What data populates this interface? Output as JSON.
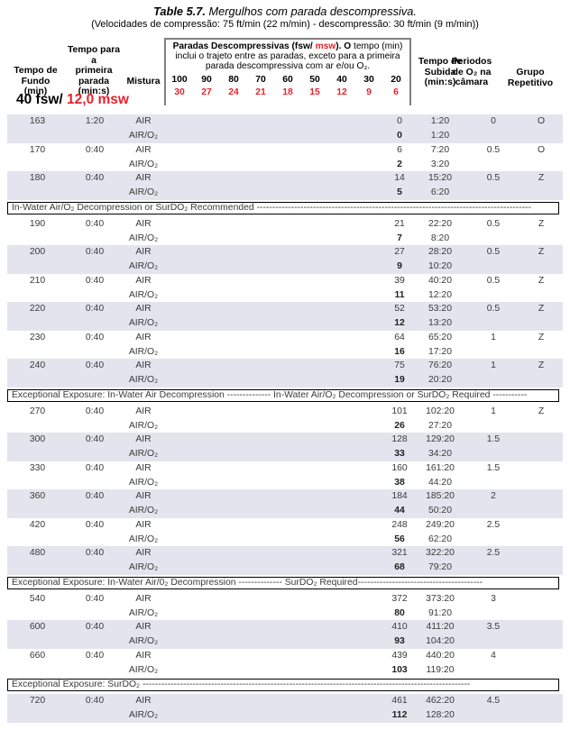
{
  "title": {
    "label": "Table 5.7.",
    "text": "Mergulhos com parada descompressiva."
  },
  "subtitle": "(Velocidades de compressão: 75 ft/min (22 m/min) - descompressão: 30 ft/min (9 m/min))",
  "depth_label": {
    "fsw": "40 fsw/",
    "msw": "12,0 msw"
  },
  "columns": {
    "bottom_time": "Tempo de Fundo\n(min)",
    "first_stop": "Tempo para a\nprimeira\nparada\n(min:s)",
    "mixture": "Mistura",
    "ascent": "Tempo de\nSubida\n(min:s)",
    "o2_periods": "Periodos\nde O₂ na\ncâmara",
    "repet_group": "Grupo\nRepetitivo"
  },
  "stops_header": {
    "title_bold_1": "Paradas Descompressivas (fsw/",
    "title_red": " msw",
    "title_bold_2": "). O",
    "title_rest": " tempo (min) inclui o trajeto entre as paradas, exceto para a primeira parada descompressiva com ar e/ou O₂.",
    "depths_fsw": [
      "100",
      "90",
      "80",
      "70",
      "60",
      "50",
      "40",
      "30",
      "20"
    ],
    "depths_msw": [
      "30",
      "27",
      "24",
      "21",
      "18",
      "15",
      "12",
      "9",
      "6"
    ]
  },
  "mixtures": {
    "air": "AIR",
    "air_o2": "AIR/O₂"
  },
  "colors": {
    "red": "#e8212b",
    "row_shade": "#e4e4ee",
    "box_border": "#808080"
  },
  "rows": [
    {
      "type": "group",
      "shaded": true,
      "bottom": "163",
      "first": "1:20",
      "air": {
        "stop": "0",
        "ascent": "1:20",
        "periods": "0",
        "group": "O"
      },
      "air_o2": {
        "stop": "0",
        "ascent": "1:20"
      }
    },
    {
      "type": "group",
      "shaded": false,
      "bottom": "170",
      "first": "0:40",
      "air": {
        "stop": "6",
        "ascent": "7:20",
        "periods": "0.5",
        "group": "O"
      },
      "air_o2": {
        "stop": "2",
        "ascent": "3:20"
      }
    },
    {
      "type": "group",
      "shaded": true,
      "bottom": "180",
      "first": "0:40",
      "air": {
        "stop": "14",
        "ascent": "15:20",
        "periods": "0.5",
        "group": "Z"
      },
      "air_o2": {
        "stop": "5",
        "ascent": "6:20"
      }
    },
    {
      "type": "banner",
      "text": "In-Water Air/O₂ Decompression or SurDO₂ Recommended  ----------------------------------------------------------------------------------------"
    },
    {
      "type": "group",
      "shaded": false,
      "bottom": "190",
      "first": "0:40",
      "air": {
        "stop": "21",
        "ascent": "22:20",
        "periods": "0.5",
        "group": "Z"
      },
      "air_o2": {
        "stop": "7",
        "ascent": "8:20"
      }
    },
    {
      "type": "group",
      "shaded": true,
      "bottom": "200",
      "first": "0:40",
      "air": {
        "stop": "27",
        "ascent": "28:20",
        "periods": "0.5",
        "group": "Z"
      },
      "air_o2": {
        "stop": "9",
        "ascent": "10:20"
      }
    },
    {
      "type": "group",
      "shaded": false,
      "bottom": "210",
      "first": "0:40",
      "air": {
        "stop": "39",
        "ascent": "40:20",
        "periods": "0.5",
        "group": "Z"
      },
      "air_o2": {
        "stop": "11",
        "ascent": "12:20"
      }
    },
    {
      "type": "group",
      "shaded": true,
      "bottom": "220",
      "first": "0:40",
      "air": {
        "stop": "52",
        "ascent": "53:20",
        "periods": "0.5",
        "group": "Z"
      },
      "air_o2": {
        "stop": "12",
        "ascent": "13:20"
      }
    },
    {
      "type": "group",
      "shaded": false,
      "bottom": "230",
      "first": "0:40",
      "air": {
        "stop": "64",
        "ascent": "65:20",
        "periods": "1",
        "group": "Z"
      },
      "air_o2": {
        "stop": "16",
        "ascent": "17:20"
      }
    },
    {
      "type": "group",
      "shaded": true,
      "bottom": "240",
      "first": "0:40",
      "air": {
        "stop": "75",
        "ascent": "76:20",
        "periods": "1",
        "group": "Z"
      },
      "air_o2": {
        "stop": "19",
        "ascent": "20:20"
      }
    },
    {
      "type": "banner",
      "text": "Exceptional Exposure: In-Water Air Decompression -------------- In-Water Air/O₂ Decompression or SurDO₂ Required -----------"
    },
    {
      "type": "group",
      "shaded": false,
      "bottom": "270",
      "first": "0:40",
      "air": {
        "stop": "101",
        "ascent": "102:20",
        "periods": "1",
        "group": "Z"
      },
      "air_o2": {
        "stop": "26",
        "ascent": "27:20"
      }
    },
    {
      "type": "group",
      "shaded": true,
      "bottom": "300",
      "first": "0:40",
      "air": {
        "stop": "128",
        "ascent": "129:20",
        "periods": "1.5",
        "group": ""
      },
      "air_o2": {
        "stop": "33",
        "ascent": "34:20"
      }
    },
    {
      "type": "group",
      "shaded": false,
      "bottom": "330",
      "first": "0:40",
      "air": {
        "stop": "160",
        "ascent": "161:20",
        "periods": "1.5",
        "group": ""
      },
      "air_o2": {
        "stop": "38",
        "ascent": "44:20"
      }
    },
    {
      "type": "group",
      "shaded": true,
      "bottom": "360",
      "first": "0:40",
      "air": {
        "stop": "184",
        "ascent": "185:20",
        "periods": "2",
        "group": ""
      },
      "air_o2": {
        "stop": "44",
        "ascent": "50:20"
      }
    },
    {
      "type": "group",
      "shaded": false,
      "bottom": "420",
      "first": "0:40",
      "air": {
        "stop": "248",
        "ascent": "249:20",
        "periods": "2.5",
        "group": ""
      },
      "air_o2": {
        "stop": "56",
        "ascent": "62:20"
      }
    },
    {
      "type": "group",
      "shaded": true,
      "bottom": "480",
      "first": "0:40",
      "air": {
        "stop": "321",
        "ascent": "322:20",
        "periods": "2.5",
        "group": ""
      },
      "air_o2": {
        "stop": "68",
        "ascent": "79:20"
      }
    },
    {
      "type": "banner",
      "text": "Exceptional Exposure: In-Water Air/0₂ Decompression -------------- SurDO₂ Required----------------------------------------"
    },
    {
      "type": "group",
      "shaded": false,
      "bottom": "540",
      "first": "0:40",
      "air": {
        "stop": "372",
        "ascent": "373:20",
        "periods": "3",
        "group": ""
      },
      "air_o2": {
        "stop": "80",
        "ascent": "91:20"
      }
    },
    {
      "type": "group",
      "shaded": true,
      "bottom": "600",
      "first": "0:40",
      "air": {
        "stop": "410",
        "ascent": "411:20",
        "periods": "3.5",
        "group": ""
      },
      "air_o2": {
        "stop": "93",
        "ascent": "104:20"
      }
    },
    {
      "type": "group",
      "shaded": false,
      "bottom": "660",
      "first": "0:40",
      "air": {
        "stop": "439",
        "ascent": "440:20",
        "periods": "4",
        "group": ""
      },
      "air_o2": {
        "stop": "103",
        "ascent": "119:20"
      }
    },
    {
      "type": "banner",
      "text": "Exceptional Exposure: SurDO₂  ---------------------------------------------------------------------------------------------------------"
    },
    {
      "type": "group",
      "shaded": true,
      "bottom": "720",
      "first": "0:40",
      "air": {
        "stop": "461",
        "ascent": "462:20",
        "periods": "4.5",
        "group": ""
      },
      "air_o2": {
        "stop": "112",
        "ascent": "128:20"
      }
    }
  ]
}
